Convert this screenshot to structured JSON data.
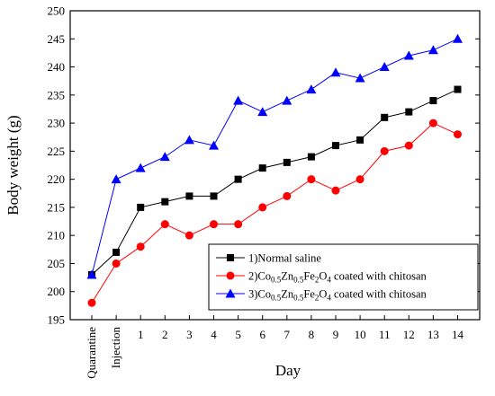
{
  "chart_data": {
    "type": "line",
    "xlabel": "Day",
    "ylabel": "Body weight (g)",
    "ylim": [
      195,
      250
    ],
    "yticks": [
      195,
      200,
      205,
      210,
      215,
      220,
      225,
      230,
      235,
      240,
      245,
      250
    ],
    "categories": [
      "Quarantine",
      "Injection",
      "1",
      "2",
      "3",
      "4",
      "5",
      "6",
      "7",
      "8",
      "9",
      "10",
      "11",
      "12",
      "13",
      "14"
    ],
    "grid": false,
    "legend_position": "bottom-right",
    "series": [
      {
        "name": "1)Normal saline",
        "legend_parts": [
          {
            "t": "1)Normal saline",
            "sub": false
          }
        ],
        "color": "#000000",
        "marker": "square",
        "values": [
          203,
          207,
          215,
          216,
          217,
          217,
          220,
          222,
          223,
          224,
          226,
          227,
          231,
          232,
          234,
          236
        ]
      },
      {
        "name": "2)Co0.5Zn0.5Fe2O4 coated with chitosan",
        "legend_parts": [
          {
            "t": "2)Co",
            "sub": false
          },
          {
            "t": "0.5",
            "sub": true
          },
          {
            "t": "Zn",
            "sub": false
          },
          {
            "t": "0.5",
            "sub": true
          },
          {
            "t": "Fe",
            "sub": false
          },
          {
            "t": "2",
            "sub": true
          },
          {
            "t": "O",
            "sub": false
          },
          {
            "t": "4",
            "sub": true
          },
          {
            "t": " coated with chitosan",
            "sub": false
          }
        ],
        "color": "#ff0000",
        "marker": "circle",
        "values": [
          198,
          205,
          208,
          212,
          210,
          212,
          212,
          215,
          217,
          220,
          218,
          220,
          225,
          226,
          230,
          228
        ]
      },
      {
        "name": "3)Co0.5Zn0.5Fe2O4 coated with chitosan",
        "legend_parts": [
          {
            "t": "3)Co",
            "sub": false
          },
          {
            "t": "0.5",
            "sub": true
          },
          {
            "t": "Zn",
            "sub": false
          },
          {
            "t": "0.5",
            "sub": true
          },
          {
            "t": "Fe",
            "sub": false
          },
          {
            "t": "2",
            "sub": true
          },
          {
            "t": "O",
            "sub": false
          },
          {
            "t": "4",
            "sub": true
          },
          {
            "t": " coated with chitosan",
            "sub": false
          }
        ],
        "color": "#0000ff",
        "marker": "triangle",
        "values": [
          203,
          220,
          222,
          224,
          227,
          226,
          234,
          232,
          234,
          236,
          239,
          238,
          240,
          242,
          243,
          245
        ]
      }
    ]
  }
}
